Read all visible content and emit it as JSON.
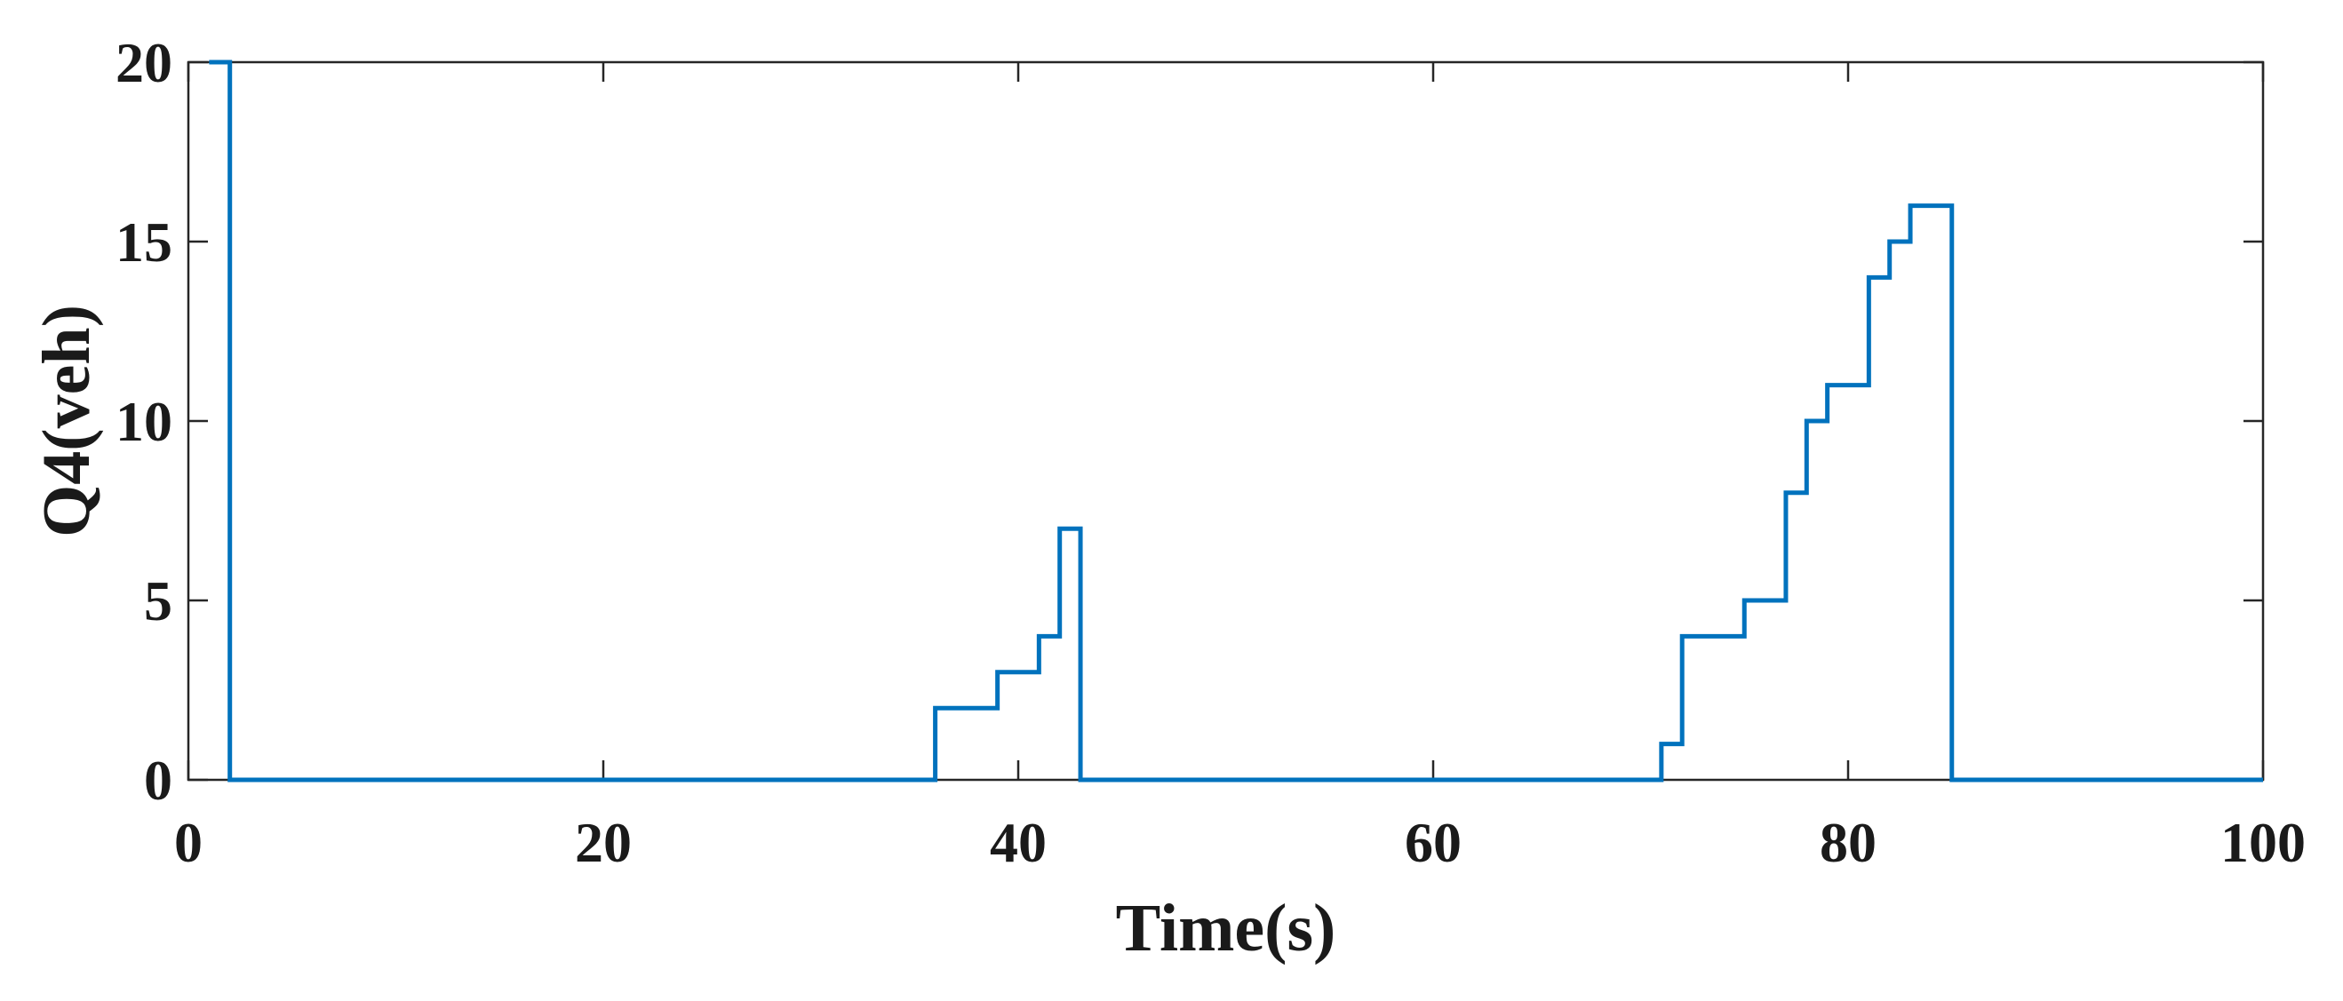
{
  "chart_data": {
    "type": "line",
    "step": "post",
    "title": "",
    "xlabel": "Time(s)",
    "ylabel": "Q4(veh)",
    "xlim": [
      0,
      100
    ],
    "ylim": [
      0,
      20
    ],
    "xticks": [
      0,
      20,
      40,
      60,
      80,
      100
    ],
    "yticks": [
      0,
      5,
      10,
      15,
      20
    ],
    "grid": false,
    "line_color": "#0072BD",
    "axis_color": "#262626",
    "series": [
      {
        "x": [
          1,
          2,
          36,
          39,
          41,
          42,
          43,
          71,
          72,
          75,
          77,
          78,
          79,
          81,
          82,
          83,
          85,
          100
        ],
        "y": [
          20,
          0,
          2,
          3,
          4,
          7,
          0,
          1,
          4,
          5,
          8,
          10,
          11,
          14,
          15,
          16,
          0,
          0
        ]
      }
    ]
  }
}
